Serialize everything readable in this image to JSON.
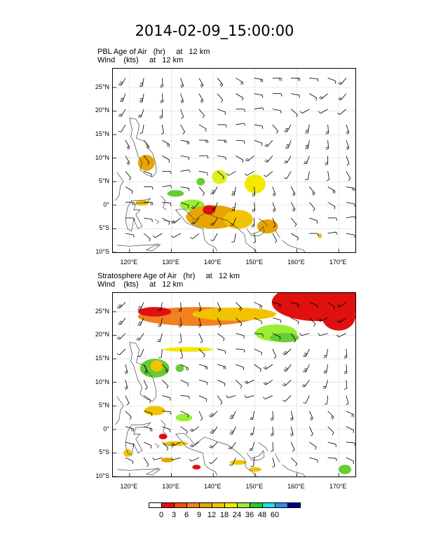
{
  "title": "2014-02-09_15:00:00",
  "panels": [
    {
      "title_line1": "PBL Age of Air   (hr)     at   12 km",
      "title_line2": "Wind    (kts)     at   12 km",
      "blobs": [
        {
          "lon": 124,
          "lat": 9,
          "rx": 2.0,
          "ry": 1.7,
          "color": "#e8a400"
        },
        {
          "lon": 123,
          "lat": 0.5,
          "rx": 1.6,
          "ry": 0.6,
          "color": "#f2c300"
        },
        {
          "lon": 131,
          "lat": 2.5,
          "rx": 2.0,
          "ry": 0.7,
          "color": "#66cc33"
        },
        {
          "lon": 135,
          "lat": 0,
          "rx": 3.0,
          "ry": 1.2,
          "color": "#99ee33"
        },
        {
          "lon": 140,
          "lat": -2.5,
          "rx": 6.5,
          "ry": 2.5,
          "color": "#e8a400"
        },
        {
          "lon": 146,
          "lat": -3,
          "rx": 3.5,
          "ry": 2.0,
          "color": "#f2c300"
        },
        {
          "lon": 139,
          "lat": -1,
          "rx": 1.5,
          "ry": 1.0,
          "color": "#e01010"
        },
        {
          "lon": 153,
          "lat": -4.5,
          "rx": 2.5,
          "ry": 1.5,
          "color": "#e8a400"
        },
        {
          "lon": 150,
          "lat": 4.5,
          "rx": 2.5,
          "ry": 2.0,
          "color": "#f2e800"
        },
        {
          "lon": 141.5,
          "lat": 6,
          "rx": 1.8,
          "ry": 1.5,
          "color": "#ddee22"
        },
        {
          "lon": 137,
          "lat": 5,
          "rx": 1.0,
          "ry": 0.8,
          "color": "#66cc33"
        },
        {
          "lon": 165.5,
          "lat": -6.5,
          "rx": 0.5,
          "ry": 0.5,
          "color": "#f2c300"
        }
      ]
    },
    {
      "title_line1": "Stratosphere Age of Air   (hr)     at   12 km",
      "title_line2": "Wind    (kts)     at   12 km",
      "blobs": [
        {
          "lon": 165,
          "lat": 27,
          "rx": 11,
          "ry": 4.0,
          "color": "#e01010"
        },
        {
          "lon": 170,
          "lat": 24,
          "rx": 4,
          "ry": 3.0,
          "color": "#e01010"
        },
        {
          "lon": 136,
          "lat": 24,
          "rx": 14,
          "ry": 2.0,
          "color": "#f08020"
        },
        {
          "lon": 145,
          "lat": 24.5,
          "rx": 10,
          "ry": 1.4,
          "color": "#f2c300"
        },
        {
          "lon": 126,
          "lat": 25,
          "rx": 4,
          "ry": 1.0,
          "color": "#e01010"
        },
        {
          "lon": 155,
          "lat": 20.5,
          "rx": 5,
          "ry": 1.8,
          "color": "#99ee33"
        },
        {
          "lon": 157,
          "lat": 19.5,
          "rx": 3.5,
          "ry": 1.0,
          "color": "#66cc33"
        },
        {
          "lon": 134,
          "lat": 17,
          "rx": 6,
          "ry": 0.5,
          "color": "#f2e800"
        },
        {
          "lon": 126,
          "lat": 13,
          "rx": 3.5,
          "ry": 2.0,
          "color": "#66cc33"
        },
        {
          "lon": 126.5,
          "lat": 13.5,
          "rx": 1.5,
          "ry": 1.2,
          "color": "#f2c300"
        },
        {
          "lon": 132,
          "lat": 13,
          "rx": 1.0,
          "ry": 0.8,
          "color": "#66cc33"
        },
        {
          "lon": 126,
          "lat": 4,
          "rx": 2.5,
          "ry": 1.0,
          "color": "#f2c300"
        },
        {
          "lon": 133,
          "lat": 2.5,
          "rx": 2.0,
          "ry": 0.8,
          "color": "#99ee33"
        },
        {
          "lon": 128,
          "lat": -1.5,
          "rx": 1.0,
          "ry": 0.6,
          "color": "#e01010"
        },
        {
          "lon": 131,
          "lat": -3,
          "rx": 3.0,
          "ry": 0.5,
          "color": "#f2c300"
        },
        {
          "lon": 129,
          "lat": -6.5,
          "rx": 1.5,
          "ry": 0.5,
          "color": "#e8a400"
        },
        {
          "lon": 136,
          "lat": -8,
          "rx": 1.0,
          "ry": 0.5,
          "color": "#e01010"
        },
        {
          "lon": 146,
          "lat": -7,
          "rx": 2.0,
          "ry": 0.5,
          "color": "#f2c300"
        },
        {
          "lon": 150,
          "lat": -8.5,
          "rx": 1.5,
          "ry": 0.5,
          "color": "#f2c300"
        },
        {
          "lon": 171.5,
          "lat": -8.5,
          "rx": 1.5,
          "ry": 1.0,
          "color": "#66cc33"
        },
        {
          "lon": 119.5,
          "lat": -5,
          "rx": 1.0,
          "ry": 0.8,
          "color": "#f2c300"
        }
      ]
    }
  ],
  "axes": {
    "lon_min": 116,
    "lon_max": 174,
    "lat_min": -10,
    "lat_max": 29,
    "lat_ticks": [
      {
        "value": 25,
        "label": "25°N"
      },
      {
        "value": 20,
        "label": "20°N"
      },
      {
        "value": 15,
        "label": "15°N"
      },
      {
        "value": 10,
        "label": "10°N"
      },
      {
        "value": 5,
        "label": "5°N"
      },
      {
        "value": 0,
        "label": "0°"
      },
      {
        "value": -5,
        "label": "5°S"
      },
      {
        "value": -10,
        "label": "10°S"
      }
    ],
    "lon_ticks": [
      {
        "value": 120,
        "label": "120°E"
      },
      {
        "value": 130,
        "label": "130°E"
      },
      {
        "value": 140,
        "label": "140°E"
      },
      {
        "value": 150,
        "label": "150°E"
      },
      {
        "value": 160,
        "label": "160°E"
      },
      {
        "value": 170,
        "label": "170°E"
      }
    ]
  },
  "colorbar": {
    "colors": [
      "#ffffff",
      "#e01010",
      "#f05010",
      "#f08020",
      "#e8a400",
      "#f2c300",
      "#f2e800",
      "#99ee33",
      "#22cc22",
      "#22dddd",
      "#3388ee",
      "#000088"
    ],
    "labels": [
      "0",
      "3",
      "6",
      "9",
      "12",
      "18",
      "24",
      "36",
      "48",
      "60"
    ]
  }
}
